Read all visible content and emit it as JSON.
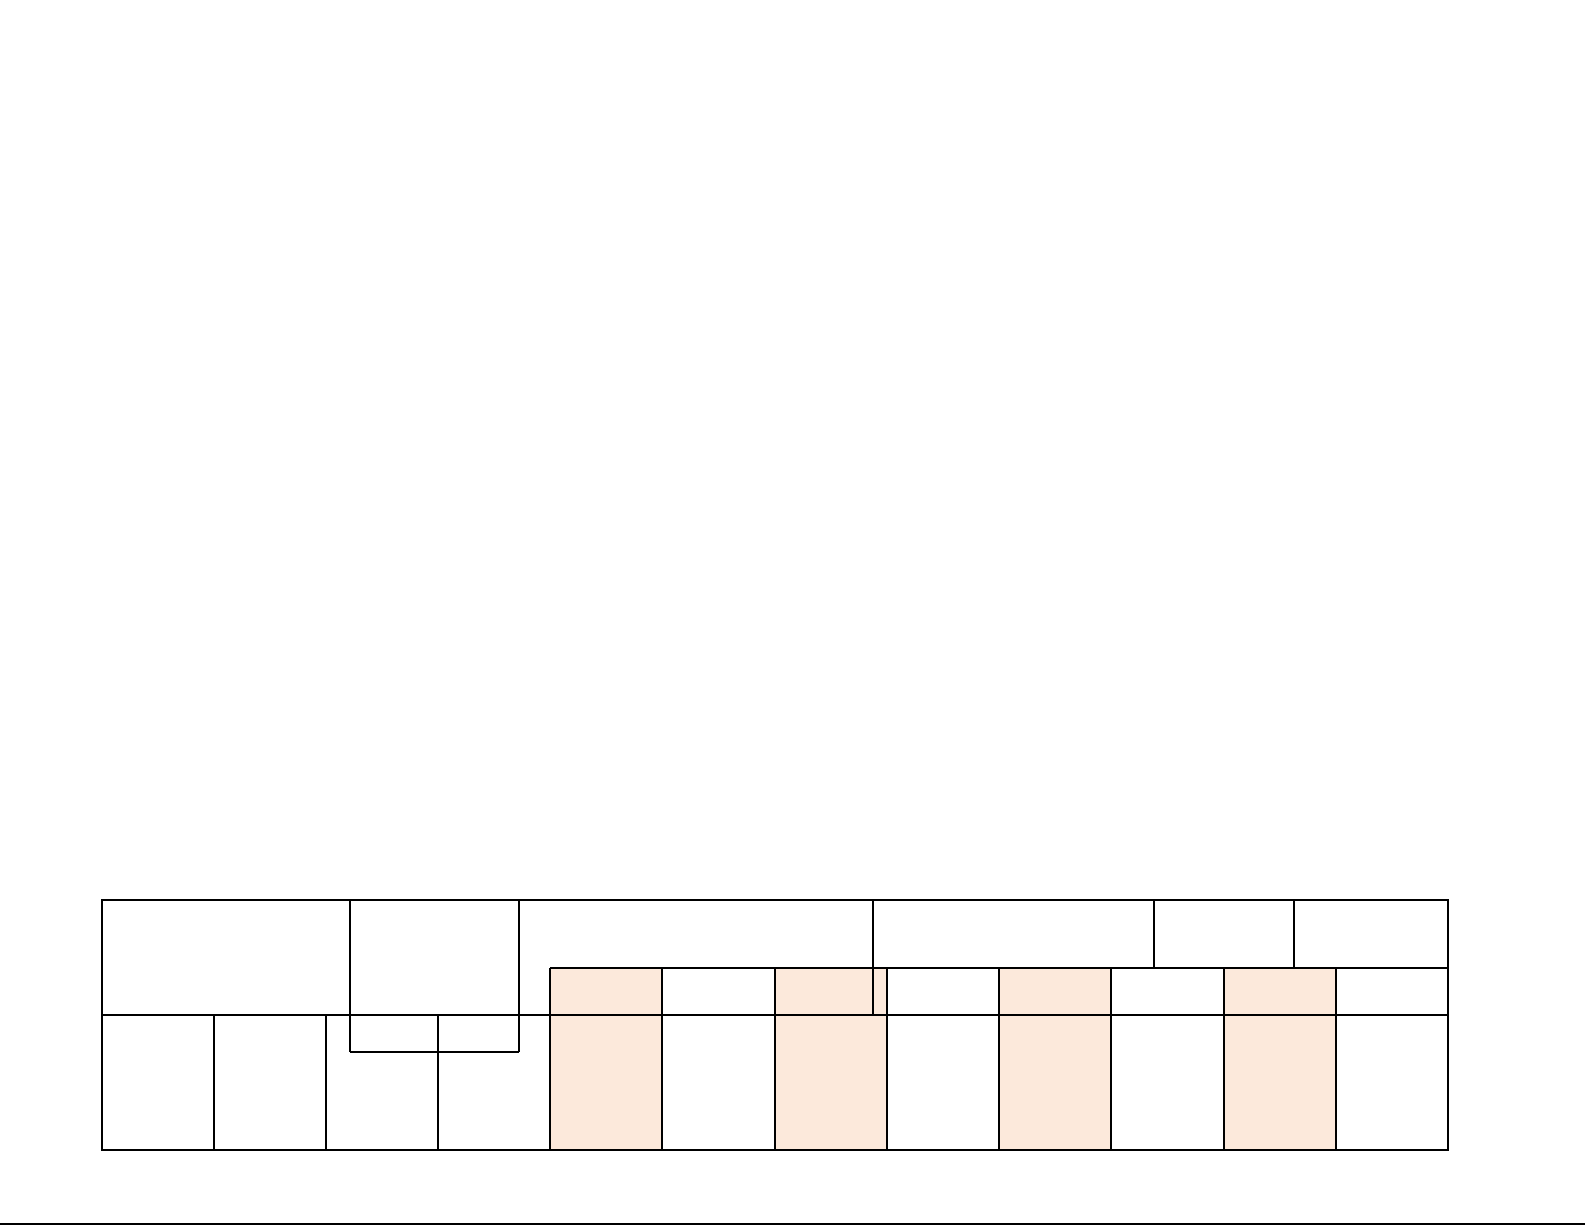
{
  "colors": {
    "line": "#000000",
    "shaded_cell": "#fce9db",
    "background": "#ffffff"
  }
}
